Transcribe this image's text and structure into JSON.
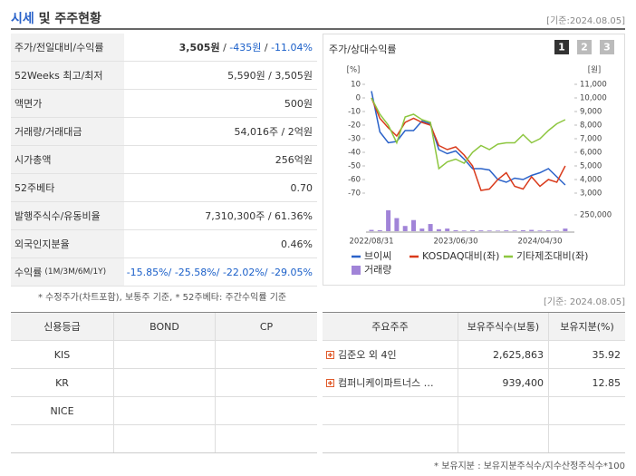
{
  "header": {
    "title_accent": "시세",
    "title_rest": "및 주주현황",
    "date": "[기준:2024.08.05]"
  },
  "summary": {
    "rows": [
      {
        "label": "주가/전일대비/수익률",
        "parts": [
          "3,505원",
          " / ",
          "-435원",
          " / ",
          "-11.04%"
        ]
      },
      {
        "label": "52Weeks 최고/최저",
        "parts": [
          "5,590원 / 3,505원"
        ]
      },
      {
        "label": "액면가",
        "parts": [
          "500원"
        ]
      },
      {
        "label": "거래량/거래대금",
        "parts": [
          "54,016주 / 2억원"
        ]
      },
      {
        "label": "시가총액",
        "parts": [
          "256억원"
        ]
      },
      {
        "label": "52주베타",
        "parts": [
          "0.70"
        ]
      },
      {
        "label": "발행주식수/유동비율",
        "parts": [
          "7,310,300주 / 61.36%"
        ]
      },
      {
        "label": "외국인지분율",
        "parts": [
          "0.46%"
        ]
      },
      {
        "label": "수익률",
        "note": "(1M/3M/6M/1Y)",
        "parts": [
          "-15.85%",
          "/ ",
          "-25.58%",
          "/ ",
          "-22.02%",
          "/ ",
          "-29.05%"
        ]
      }
    ],
    "footnote": "* 수정주가(차트포함), 보통주 기준, * 52주베타: 주간수익률 기준"
  },
  "chart_panel": {
    "title": "주가/상대수익률",
    "buttons": [
      "1",
      "2",
      "3"
    ]
  },
  "chart_data": {
    "type": "line",
    "y_unit": "[%]",
    "y2_unit": "[원]",
    "categories": [
      "2022/08/31",
      null,
      null,
      null,
      null,
      null,
      null,
      null,
      null,
      null,
      "2023/06/30",
      null,
      null,
      null,
      null,
      null,
      null,
      null,
      null,
      null,
      "2024/04/30",
      null,
      null,
      null
    ],
    "ylim": [
      -70,
      10
    ],
    "yticks": [
      -70,
      -60,
      -50,
      -40,
      -30,
      -20,
      -10,
      0,
      10
    ],
    "y2lim": [
      3000,
      11000
    ],
    "y2ticks": [
      {
        "value": 3000,
        "label": "3,000"
      },
      {
        "value": 4000,
        "label": "4,000"
      },
      {
        "value": 5000,
        "label": "5,000"
      },
      {
        "value": 6000,
        "label": "6,000"
      },
      {
        "value": 7000,
        "label": "7,000"
      },
      {
        "value": 8000,
        "label": "8,000"
      },
      {
        "value": 9000,
        "label": "9,000"
      },
      {
        "value": 10000,
        "label": "10,000"
      },
      {
        "value": 11000,
        "label": "11,000"
      }
    ],
    "volume_lim": [
      0,
      360000
    ],
    "volume_ticks": [
      {
        "value": 250000,
        "label": "250,000"
      }
    ],
    "series": [
      {
        "name": "브이씨",
        "color": "#2a62c9",
        "axis": "y2",
        "values": [
          10500,
          7500,
          6700,
          6800,
          7600,
          7600,
          8300,
          8100,
          6200,
          5900,
          6100,
          5500,
          4800,
          4800,
          4700,
          4000,
          3800,
          4100,
          4000,
          4300,
          4500,
          4800,
          4200,
          3600
        ]
      },
      {
        "name": "KOSDAQ대비(좌)",
        "color": "#d93a1b",
        "axis": "y",
        "values": [
          0,
          -15,
          -22,
          -28,
          -18,
          -15,
          -18,
          -20,
          -35,
          -38,
          -36,
          -42,
          -50,
          -68,
          -67,
          -60,
          -55,
          -65,
          -67,
          -58,
          -65,
          -60,
          -62,
          -50
        ]
      },
      {
        "name": "기타제조대비(좌)",
        "color": "#8dc63f",
        "axis": "y",
        "values": [
          0,
          -12,
          -20,
          -33,
          -14,
          -12,
          -16,
          -18,
          -52,
          -47,
          -45,
          -48,
          -40,
          -35,
          -38,
          -34,
          -33,
          -33,
          -27,
          -33,
          -30,
          -24,
          -19,
          -16
        ]
      },
      {
        "name": "거래량",
        "color": "#a184d8",
        "axis": "volume",
        "type": "bar",
        "values": [
          20000,
          15000,
          320000,
          200000,
          80000,
          170000,
          40000,
          110000,
          30000,
          40000,
          15000,
          10000,
          15000,
          12000,
          10000,
          8000,
          12000,
          10000,
          15000,
          20000,
          10000,
          12000,
          8000,
          40000
        ]
      }
    ]
  },
  "credit": {
    "headers": [
      "신용등급",
      "BOND",
      "CP"
    ],
    "agencies": [
      "KIS",
      "KR",
      "NICE"
    ]
  },
  "holders": {
    "date": "[기준: 2024.08.05]",
    "headers": [
      "주요주주",
      "보유주식수(보통)",
      "보유지분(%)"
    ],
    "rows": [
      [
        "김준오 외 4인",
        "2,625,863",
        "35.92"
      ],
      [
        "컴퍼니케이파트너스 …",
        "939,400",
        "12.85"
      ]
    ],
    "footnote": "* 보유지분 : 보유지분주식수/지수산정주식수*100"
  }
}
